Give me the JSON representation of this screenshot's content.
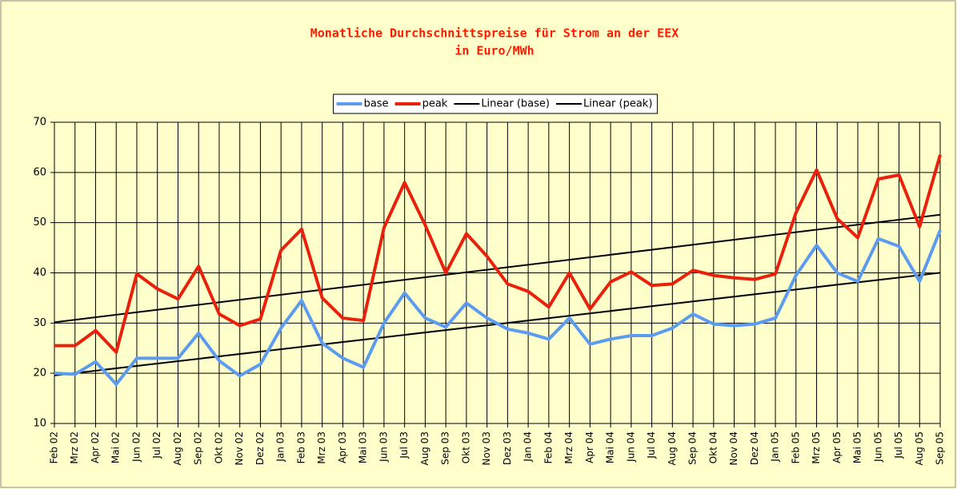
{
  "chart_data": {
    "type": "line",
    "title": "Monatliche Durchschnittspreise für Strom an der EEX",
    "subtitle": "in Euro/MWh",
    "categories": [
      "Feb 02",
      "Mrz 02",
      "Apr 02",
      "Mai 02",
      "Jun 02",
      "Jul 02",
      "Aug 02",
      "Sep 02",
      "Okt 02",
      "Nov 02",
      "Dez 02",
      "Jan 03",
      "Feb 03",
      "Mrz 03",
      "Apr 03",
      "Mai 03",
      "Jun 03",
      "Jul 03",
      "Aug 03",
      "Sep 03",
      "Okt 03",
      "Nov 03",
      "Dez 03",
      "Jan 04",
      "Feb 04",
      "Mrz 04",
      "Apr 04",
      "Mai 04",
      "Jun 04",
      "Jul 04",
      "Aug 04",
      "Sep 04",
      "Okt 04",
      "Nov 04",
      "Dez 04",
      "Jan 05",
      "Feb 05",
      "Mrz 05",
      "Apr 05",
      "Mai 05",
      "Jun 05",
      "Jul 05",
      "Aug 05",
      "Sep 05"
    ],
    "series": [
      {
        "name": "base",
        "color": "#5b9bf0",
        "values": [
          20,
          19.8,
          22.3,
          17.8,
          23,
          23,
          23,
          28,
          22.5,
          19.5,
          21.8,
          29,
          34.5,
          26,
          23,
          21.2,
          30,
          36,
          31,
          29.2,
          34,
          31,
          28.8,
          28,
          26.8,
          31,
          25.8,
          26.8,
          27.5,
          27.5,
          29,
          31.8,
          29.8,
          29.5,
          29.8,
          31,
          39.5,
          45.5,
          40,
          38.3,
          46.8,
          45.3,
          38.3,
          48.5
        ]
      },
      {
        "name": "peak",
        "color": "#e8200c",
        "values": [
          25.5,
          25.5,
          28.5,
          24.2,
          39.8,
          36.8,
          34.8,
          41.3,
          31.8,
          29.5,
          30.8,
          44.5,
          48.7,
          35,
          31,
          30.5,
          49,
          58,
          49.5,
          40,
          47.8,
          43.3,
          37.8,
          36.3,
          33.2,
          40,
          32.8,
          38.2,
          40.2,
          37.5,
          37.8,
          40.5,
          39.5,
          39,
          38.7,
          39.8,
          52,
          60.5,
          50.8,
          47,
          58.7,
          59.5,
          49.2,
          63.5
        ]
      }
    ],
    "trendlines": [
      {
        "name": "Linear (base)",
        "color": "#000000",
        "of": 0
      },
      {
        "name": "Linear (peak)",
        "color": "#000000",
        "of": 1
      }
    ],
    "ylim": [
      10,
      70
    ],
    "yticks": [
      10,
      20,
      30,
      40,
      50,
      60,
      70
    ],
    "grid": true
  }
}
